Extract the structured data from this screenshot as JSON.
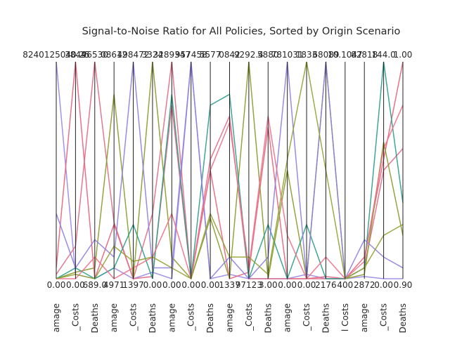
{
  "chart_data": {
    "type": "parallel",
    "title": "Signal-to-Noise Ratio for All Policies, Sorted by Origin Scenario",
    "categories": [
      "amage",
      "_Costs",
      "Deaths",
      "amage",
      "_Costs",
      "Deaths",
      "amage",
      "_Costs",
      "Deaths",
      "amage",
      "_Costs",
      "Deaths",
      "amage",
      "_Costs",
      "Deaths",
      "l Costs",
      "amage",
      "_Costs",
      "Deaths"
    ],
    "axis_max_labels": [
      "8240125040.25",
      "3844",
      "96530",
      "08612",
      "498472",
      "3324",
      "3289347",
      "957458",
      "5577",
      "0842",
      "9292.4",
      "5880",
      "781031",
      "1833",
      "68089",
      "10.1047",
      "82818",
      "144.0",
      "1.00"
    ],
    "axis_min_labels": [
      "0.00",
      "0.00",
      "689.0",
      "4971",
      "1397",
      "0.00",
      "0.00",
      "0.00",
      "0.00",
      "1337",
      "97123",
      "3.00",
      "0.00",
      "0.00",
      "2176",
      "400",
      "2872",
      "0.00",
      "0.90"
    ],
    "ylim": [
      0,
      1
    ],
    "series": [
      {
        "color": "#9b86e8",
        "values": [
          1,
          0.02,
          0,
          0.05,
          0,
          0.03,
          0,
          1,
          0,
          0.02,
          0,
          0,
          0,
          0.02,
          0,
          0,
          0.01,
          0,
          0
        ]
      },
      {
        "color": "#e8627c",
        "values": [
          0.05,
          1,
          0,
          0.25,
          0,
          0.01,
          0.8,
          0,
          0.5,
          0,
          0.03,
          0.7,
          0,
          0,
          0.01,
          0,
          0.1,
          0.55,
          1
        ]
      },
      {
        "color": "#e06a86",
        "values": [
          0.02,
          0.15,
          1,
          0.26,
          0,
          0.3,
          1,
          0,
          0.55,
          0.75,
          0,
          0,
          0,
          0,
          0,
          0,
          0.05,
          0.5,
          0.6
        ]
      },
      {
        "color": "#8a9a2a",
        "values": [
          0,
          0.03,
          0.05,
          0.85,
          0,
          1,
          0.1,
          0,
          0.28,
          0,
          1,
          0,
          0.5,
          0,
          1,
          0,
          0.02,
          0.63,
          0.2
        ]
      },
      {
        "color": "#2a9d8a",
        "values": [
          0,
          0.05,
          0,
          0.05,
          0.25,
          0,
          0.85,
          0,
          0.8,
          0.85,
          0,
          0.25,
          0,
          0.25,
          0,
          0,
          0.05,
          1,
          0.35
        ]
      },
      {
        "color": "#8f7ee0",
        "values": [
          0.3,
          0.05,
          0.18,
          0.1,
          1,
          0.05,
          0.05,
          1,
          0,
          0.1,
          0,
          0.1,
          1,
          0,
          1,
          0,
          0.18,
          0.1,
          0.05
        ]
      },
      {
        "color": "#ee6f8a",
        "values": [
          0,
          0,
          0.1,
          0,
          0.05,
          0.1,
          0.3,
          0,
          0.5,
          0.72,
          0.05,
          0.75,
          0.2,
          0,
          0.1,
          0,
          0.08,
          0.6,
          0.8
        ]
      },
      {
        "color": "#94a233",
        "values": [
          0,
          0.02,
          0,
          0.15,
          0.08,
          0.1,
          0.05,
          0,
          0.3,
          0.1,
          0.1,
          0.02,
          0.55,
          1,
          0.5,
          0,
          0.05,
          0.2,
          0.25
        ]
      }
    ]
  }
}
